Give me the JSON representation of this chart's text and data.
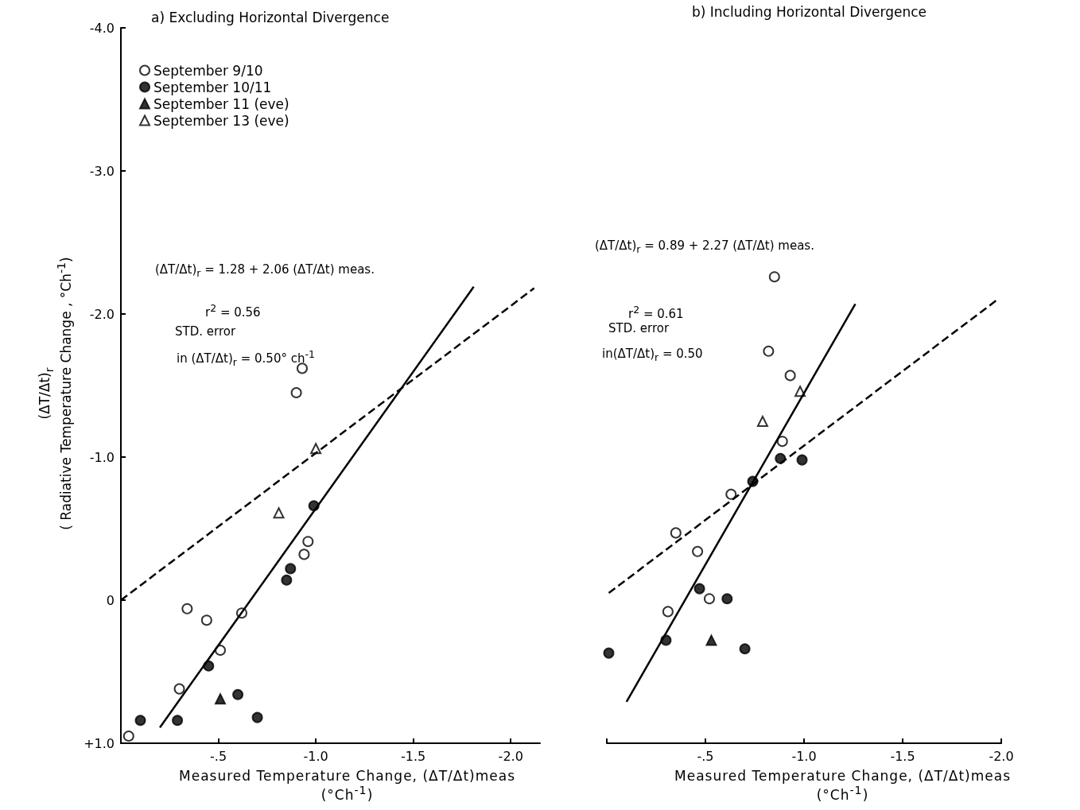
{
  "chart_data": [
    {
      "type": "scatter",
      "title": "a) Excluding Horizontal Divergence",
      "xlabel": "Measured Temperature Change, (ΔT/Δt)meas\n(°Ch$^{-1}$)",
      "ylabel": "(ΔT/Δt)$_{r}$\n( Radiative Temperature Change , °Ch$^{-1}$)",
      "xlim": [
        0,
        -2.15
      ],
      "xticks": [
        {
          "value": 0,
          "label": null
        },
        {
          "value": -0.5,
          "label": "-.5"
        },
        {
          "value": -1,
          "label": "-1.0"
        },
        {
          "value": -1.5,
          "label": "-1.5"
        },
        {
          "value": -2,
          "label": "-2.0"
        }
      ],
      "ylim": [
        1,
        -4
      ],
      "yticks": [
        {
          "value": 1,
          "label": "+1.0"
        },
        0,
        {
          "value": -1,
          "label": "-1.0"
        },
        {
          "value": -2,
          "label": "-2.0"
        },
        {
          "value": -3,
          "label": "-3.0"
        },
        {
          "value": -4,
          "label": "-4.0"
        }
      ],
      "legend": "top left",
      "annotations": [
        "(ΔT/Δt)$_{r}$ = 1.28 + 2.06 (ΔT/Δt) meas.",
        "r$^{2}$ = 0.56",
        "STD. error",
        "in (ΔT/Δt)$_{r}$ = 0.50° ch$^{-1}$"
      ],
      "series": [
        {
          "name": "September 9/10",
          "marker": "circle",
          "color": "#ffffff",
          "x": [
            -0.04,
            -0.34,
            -0.44,
            -0.51,
            -0.3,
            -0.62,
            -0.9,
            -0.93,
            -0.94,
            -0.96
          ],
          "values": [
            0.95,
            0.06,
            0.14,
            0.35,
            0.62,
            0.09,
            -1.45,
            -1.62,
            -0.32,
            -0.41
          ]
        },
        {
          "name": "September 10/11",
          "marker": "circle",
          "color": "#000000",
          "x": [
            -0.1,
            -0.29,
            -0.45,
            -0.6,
            -0.7,
            -0.85,
            -0.87,
            -0.99
          ],
          "values": [
            0.84,
            0.84,
            0.46,
            0.66,
            0.82,
            -0.14,
            -0.22,
            -0.66
          ]
        },
        {
          "name": "September 11 (eve)",
          "marker": "triangle",
          "color": "#000000",
          "x": [
            -0.51
          ],
          "values": [
            0.69
          ]
        },
        {
          "name": "September 13 (eve)",
          "marker": "triangle",
          "color": "#ffffff",
          "x": [
            -0.81,
            -1.0
          ],
          "values": [
            -0.61,
            -1.06
          ]
        },
        {
          "type": "line",
          "marker": "none",
          "line_style": "solid",
          "color": "#000000",
          "x": [
            -0.2,
            -1.81
          ],
          "values": [
            0.89,
            -2.19
          ]
        },
        {
          "type": "line",
          "marker": "none",
          "line_style": "dashed",
          "color": "#000000",
          "x": [
            0,
            -2.12
          ],
          "values": [
            0,
            -2.18
          ]
        }
      ]
    },
    {
      "type": "scatter",
      "title": "b) Including Horizontal Divergence",
      "xlabel": "Measured Temperature Change, (ΔT/Δt)meas\n(°Ch$^{-1}$)",
      "xlim": [
        0,
        -2
      ],
      "xticks": [
        {
          "value": 0,
          "label": null
        },
        {
          "value": -0.5,
          "label": "-.5"
        },
        {
          "value": -1,
          "label": "-1.0"
        },
        {
          "value": -1.5,
          "label": "-1.5"
        },
        {
          "value": -2,
          "label": "-2.0"
        }
      ],
      "ylim": [
        1,
        -4
      ],
      "tick_labels": "x",
      "annotations": [
        "(ΔT/Δt)$_{r}$ = 0.89 + 2.27 (ΔT/Δt) meas.",
        "r$^{2}$ = 0.61",
        "STD. error",
        "in(ΔT/Δt)$_{r}$ = 0.50"
      ],
      "series": [
        {
          "marker": "circle",
          "color": "#ffffff",
          "x": [
            -0.85,
            -0.82,
            -0.93,
            -0.89,
            -0.63,
            -0.35,
            -0.46,
            -0.31,
            -0.52
          ],
          "values": [
            -2.26,
            -1.74,
            -1.57,
            -1.11,
            -0.74,
            -0.47,
            -0.34,
            0.08,
            -0.01
          ]
        },
        {
          "marker": "circle",
          "color": "#000000",
          "x": [
            -0.01,
            -0.3,
            -0.47,
            -0.61,
            -0.7,
            -0.74,
            -0.88,
            -0.99
          ],
          "values": [
            0.37,
            0.28,
            -0.08,
            -0.01,
            0.34,
            -0.83,
            -0.99,
            -0.98
          ]
        },
        {
          "marker": "triangle",
          "color": "#000000",
          "x": [
            -0.53
          ],
          "values": [
            0.28
          ]
        },
        {
          "marker": "triangle",
          "color": "#ffffff",
          "x": [
            -0.79,
            -0.98
          ],
          "values": [
            -1.25,
            -1.46
          ]
        },
        {
          "type": "line",
          "marker": "none",
          "line_style": "solid",
          "color": "#000000",
          "x": [
            -0.1,
            -1.26
          ],
          "values": [
            0.71,
            -2.07
          ]
        },
        {
          "type": "line",
          "marker": "none",
          "line_style": "dashed",
          "color": "#000000",
          "x": [
            -0.01,
            -1.98
          ],
          "values": [
            -0.05,
            -2.1
          ]
        }
      ]
    }
  ]
}
